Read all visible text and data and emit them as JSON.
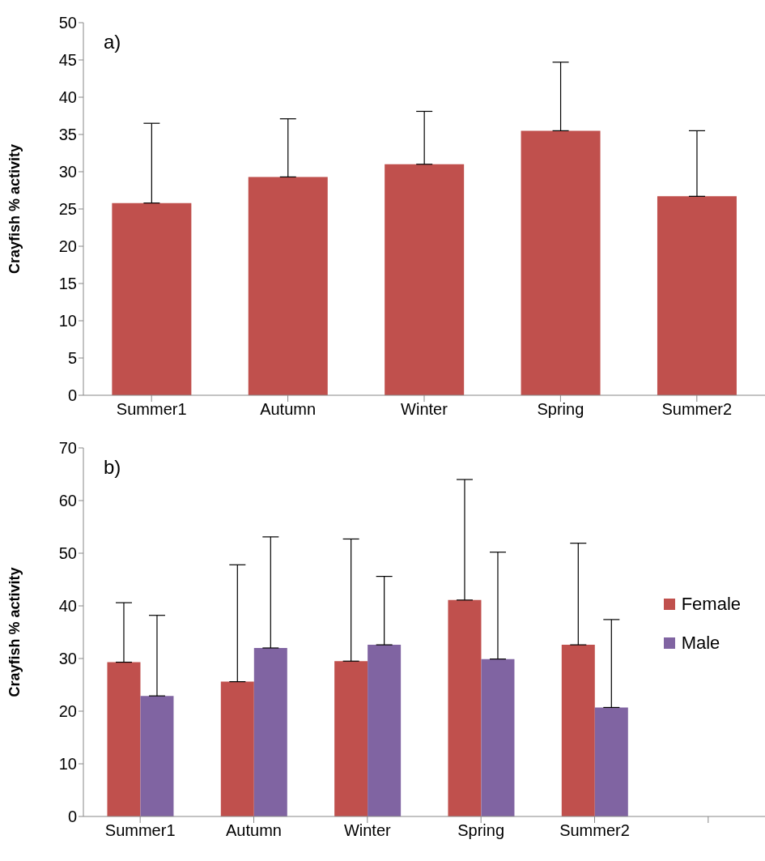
{
  "chart_data": [
    {
      "type": "bar",
      "annotations": [
        "a)"
      ],
      "ylabel": "Crayfish % activity",
      "categories": [
        "Summer1",
        "Autumn",
        "Winter",
        "Spring",
        "Summer2"
      ],
      "series": [
        {
          "color": "#c0504d",
          "values": [
            25.8,
            29.3,
            31.0,
            35.5,
            26.7
          ],
          "errors": [
            [
              25.8,
              36.5
            ],
            [
              29.3,
              37.1
            ],
            [
              31.0,
              38.1
            ],
            [
              35.5,
              44.7
            ],
            [
              26.7,
              35.5
            ]
          ]
        }
      ],
      "ylim": [
        0,
        50
      ],
      "yticks": [
        0,
        5,
        10,
        15,
        20,
        25,
        30,
        35,
        40,
        45,
        50
      ],
      "grid": false,
      "legend": false
    },
    {
      "type": "bar",
      "annotations": [
        "b)"
      ],
      "ylabel": "Crayfish % activity",
      "categories": [
        "Summer1",
        "Autumn",
        "Winter",
        "Spring",
        "Summer2",
        null
      ],
      "series": [
        {
          "name": "Female",
          "color": "#c0504d",
          "values": [
            29.3,
            25.6,
            29.5,
            41.1,
            32.6,
            null
          ],
          "errors": [
            [
              29.3,
              40.6
            ],
            [
              25.6,
              47.8
            ],
            [
              29.5,
              52.7
            ],
            [
              41.1,
              64.0
            ],
            [
              32.6,
              51.9
            ],
            null
          ]
        },
        {
          "name": "Male",
          "color": "#8064a2",
          "values": [
            22.9,
            32.0,
            32.6,
            29.9,
            20.7,
            null
          ],
          "errors": [
            [
              22.9,
              38.2
            ],
            [
              32.0,
              53.1
            ],
            [
              32.6,
              45.6
            ],
            [
              29.9,
              50.2
            ],
            [
              20.7,
              37.4
            ],
            null
          ]
        }
      ],
      "ylim": [
        0,
        70
      ],
      "yticks": [
        0,
        10,
        20,
        30,
        40,
        50,
        60,
        70
      ],
      "grid": false,
      "legend": "right"
    }
  ]
}
